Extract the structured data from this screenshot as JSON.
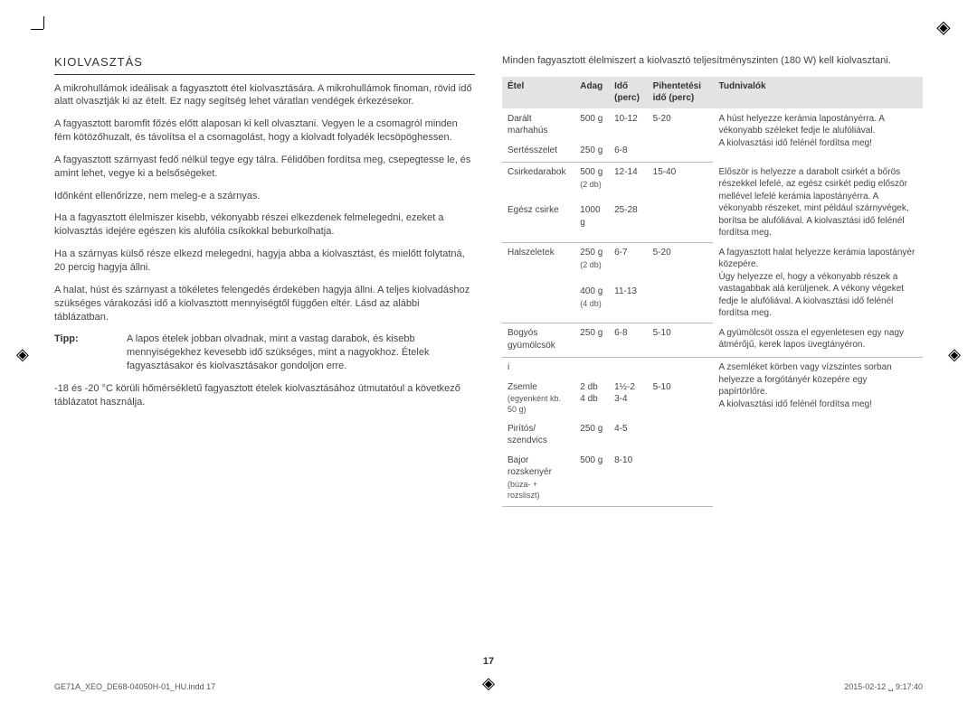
{
  "section_title": "KIOLVASZTÁS",
  "left": {
    "p1": "A mikrohullámok ideálisak a fagyasztott étel kiolvasztására. A mikrohullámok finoman, rövid idő alatt olvasztják ki az ételt. Ez nagy segítség lehet váratlan vendégek érkezésekor.",
    "p2": "A fagyasztott baromfit főzés előtt alaposan ki kell olvasztani. Vegyen le a csomagról minden fém kötözőhuzalt, és távolítsa el a csomagolást, hogy a kiolvadt folyadék lecsöpöghessen.",
    "p3": "A fagyasztott szárnyast fedő nélkül tegye egy tálra. Félidőben fordítsa meg, csepegtesse le, és amint lehet, vegye ki a belsőségeket.",
    "p4": "Időnként ellenőrizze, nem meleg-e a szárnyas.",
    "p5": "Ha a fagyasztott élelmiszer kisebb, vékonyabb részei elkezdenek felmelegedni, ezeket a kiolvasztás idejére egészen kis alufólia csíkokkal beburkolhatja.",
    "p6": "Ha a szárnyas külső része elkezd melegedni, hagyja abba a kiolvasztást, és mielőtt folytatná, 20 percig hagyja állni.",
    "p7": "A halat, húst és szárnyast a tökéletes felengedés érdekében hagyja állni. A teljes kiolvadáshoz szükséges várakozási idő a kiolvasztott mennyiségtől függően eltér. Lásd az alábbi táblázatban.",
    "tip_label": "Tipp:",
    "tip_text": "A lapos ételek jobban olvadnak, mint a vastag darabok, és kisebb mennyiségekhez kevesebb idő szükséges, mint a nagyokhoz. Ételek fagyasztásakor és kiolvasztásakor gondoljon erre.",
    "p8": "-18 és -20 °C körüli hőmérsékletű fagyasztott ételek kiolvasztásához útmutatóul a következő táblázatot használja."
  },
  "right_intro": "Minden fagyasztott élelmiszert a kiolvasztó teljesítményszinten (180 W) kell kiolvasztani.",
  "table": {
    "headers": [
      "Étel",
      "Adag",
      "Idő (perc)",
      "Pihentetési idő (perc)",
      "Tudnivalók"
    ],
    "groups": [
      {
        "rows": [
          {
            "food": "Darált marhahús",
            "portion": "500 g",
            "time": "10-12",
            "stand": "5-20"
          },
          {
            "food": "Sertésszelet",
            "portion": "250 g",
            "time": "6-8",
            "stand": ""
          }
        ],
        "note": "A húst helyezze kerámia lapostányérra. A vékonyabb széleket fedje le alufóliával.\nA kiolvasztási idő felénél fordítsa meg!"
      },
      {
        "rows": [
          {
            "food": "Csirkedarabok",
            "portion": "500 g",
            "portion_sub": "(2 db)",
            "time": "12-14",
            "stand": "15-40"
          },
          {
            "food": "Egész csirke",
            "portion": "1000 g",
            "time": "25-28",
            "stand": ""
          }
        ],
        "note": "Először is helyezze a darabolt csirkét a bőrös részekkel lefelé, az egész csirkét pedig először mellével lefelé kerámia lapostányérra. A vékonyabb részeket, mint például szárnyvégek, borítsa be alufóliával. A kiolvasztási idő felénél fordítsa meg."
      },
      {
        "rows": [
          {
            "food": "Halszeletek",
            "portion": "250 g",
            "portion_sub": "(2 db)",
            "time": "6-7",
            "stand": "5-20"
          },
          {
            "food": "",
            "portion": "400 g",
            "portion_sub": "(4 db)",
            "time": "11-13",
            "stand": ""
          }
        ],
        "note": "A fagyasztott halat helyezze kerámia lapostányér közepére.\nÚgy helyezze el, hogy a vékonyabb részek a vastagabbak alá kerüljenek. A vékony végeket fedje le alufóliával. A kiolvasztási idő felénél fordítsa meg."
      },
      {
        "rows": [
          {
            "food": "Bogyós gyümölcsök",
            "portion": "250 g",
            "time": "6-8",
            "stand": "5-10"
          }
        ],
        "note": "A gyümölcsöt ossza el egyenletesen egy nagy átmérőjű, kerek lapos üvegtányéron."
      },
      {
        "rows": [
          {
            "food": "i",
            "portion": "",
            "time": "",
            "stand": ""
          },
          {
            "food": "Zsemle",
            "food_sub": "(egyenként kb. 50 g)",
            "portion": "2 db\n4 db",
            "time": "1½-2\n3-4",
            "stand": "5-10"
          },
          {
            "food": "Pirítós/ szendvics",
            "portion": "250 g",
            "time": "4-5",
            "stand": ""
          },
          {
            "food": "Bajor rozskenyér",
            "food_sub": "(búza- + rozsliszt)",
            "portion": "500 g",
            "time": "8-10",
            "stand": ""
          }
        ],
        "note": "A zsemléket körben vagy vízszintes sorban helyezze a forgótányér közepére egy papírtörlőre.\nA kiolvasztási idő felénél fordítsa meg!"
      }
    ]
  },
  "page_number": "17",
  "footer_left": "GE71A_XEO_DE68-04050H-01_HU.indd   17",
  "footer_right": "2015-02-12   ␣ 9:17:40",
  "colors": {
    "header_bg": "#e3e3e3",
    "text": "#444444",
    "rule": "#333333"
  }
}
